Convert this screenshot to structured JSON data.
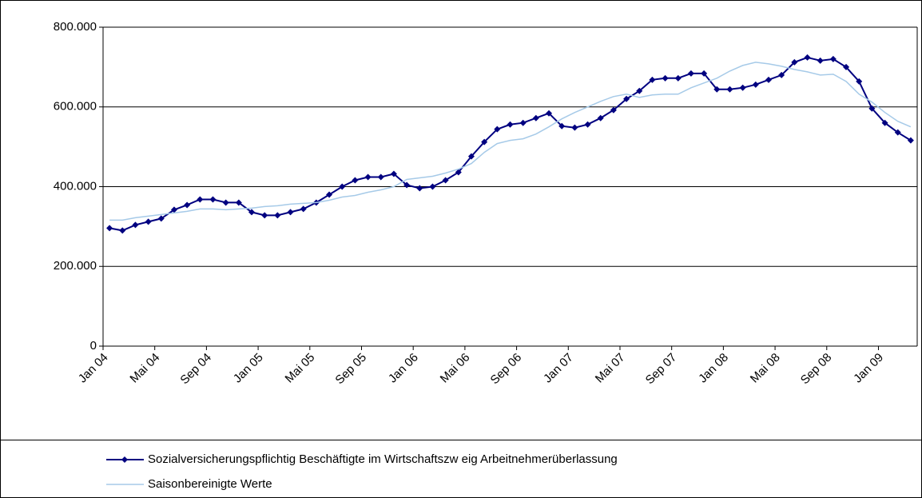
{
  "chart_data": {
    "type": "line",
    "categories": [
      "Jan 04",
      null,
      null,
      null,
      "Mai 04",
      null,
      null,
      null,
      "Sep 04",
      null,
      null,
      null,
      "Jan 05",
      null,
      null,
      null,
      "Mai 05",
      null,
      null,
      null,
      "Sep 05",
      null,
      null,
      null,
      "Jan 06",
      null,
      null,
      null,
      "Mai 06",
      null,
      null,
      null,
      "Sep 06",
      null,
      null,
      null,
      "Jan 07",
      null,
      null,
      null,
      "Mai 07",
      null,
      null,
      null,
      "Sep 07",
      null,
      null,
      null,
      "Jan 08",
      null,
      null,
      null,
      "Mai 08",
      null,
      null,
      null,
      "Sep 08",
      null,
      null,
      null,
      "Jan 09",
      null,
      null
    ],
    "series": [
      {
        "name": "Sozialversicherungspflichtig Beschäftigte im Wirtschaftszw eig Arbeitnehmerüberlassung",
        "color": "#000080",
        "marker": true,
        "values": [
          296000,
          290000,
          304000,
          312000,
          320000,
          342000,
          354000,
          368000,
          368000,
          360000,
          360000,
          336000,
          328000,
          328000,
          336000,
          344000,
          360000,
          380000,
          400000,
          416000,
          424000,
          424000,
          432000,
          404000,
          396000,
          400000,
          416000,
          436000,
          476000,
          512000,
          544000,
          556000,
          560000,
          572000,
          584000,
          552000,
          548000,
          556000,
          572000,
          592000,
          620000,
          640000,
          668000,
          672000,
          672000,
          684000,
          684000,
          644000,
          644000,
          648000,
          656000,
          668000,
          680000,
          712000,
          724000,
          716000,
          720000,
          700000,
          664000,
          596000,
          560000,
          536000,
          516000
        ]
      },
      {
        "name": "Saisonbereinigte Werte",
        "color": "#a6cae8",
        "marker": false,
        "values": [
          316000,
          316000,
          322000,
          326000,
          330000,
          334000,
          338000,
          344000,
          344000,
          342000,
          344000,
          346000,
          350000,
          352000,
          356000,
          358000,
          360000,
          366000,
          374000,
          378000,
          386000,
          392000,
          400000,
          418000,
          422000,
          426000,
          434000,
          444000,
          458000,
          486000,
          508000,
          516000,
          520000,
          532000,
          550000,
          570000,
          586000,
          600000,
          614000,
          626000,
          632000,
          624000,
          630000,
          632000,
          632000,
          648000,
          660000,
          672000,
          690000,
          704000,
          712000,
          708000,
          702000,
          694000,
          688000,
          680000,
          682000,
          664000,
          632000,
          612000,
          586000,
          564000,
          550000
        ]
      }
    ],
    "ylim": [
      0,
      800000
    ],
    "yticks": [
      0,
      {
        "value": 200000,
        "label": "200.000"
      },
      {
        "value": 400000,
        "label": "400.000"
      },
      {
        "value": 600000,
        "label": "600.000"
      },
      {
        "value": 800000,
        "label": "800.000"
      }
    ],
    "grid": true,
    "legend": "bottom"
  }
}
